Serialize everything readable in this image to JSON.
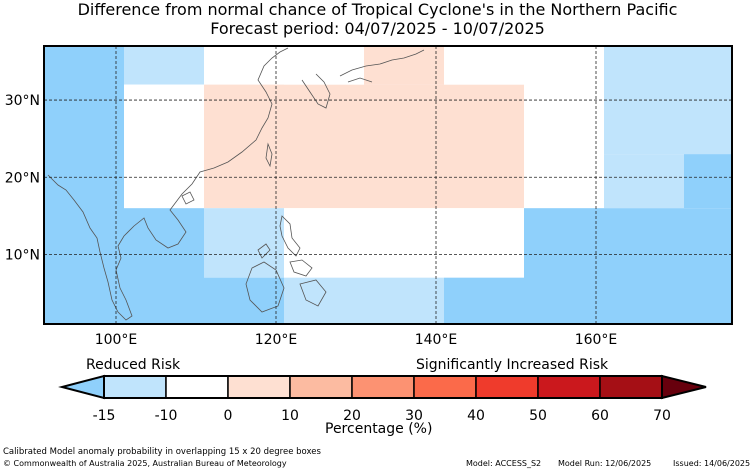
{
  "title_line1": "Difference from normal chance of Tropical Cyclone's in the Northern Pacific",
  "title_line2": "Forecast period: 04/07/2025 - 10/07/2025",
  "map": {
    "lat_labels": [
      "30°N",
      "20°N",
      "10°N"
    ],
    "lon_labels": [
      "100°E",
      "120°E",
      "140°E",
      "160°E"
    ],
    "cells": [
      {
        "lon": [
          91,
          101
        ],
        "lat": [
          1,
          37
        ],
        "bin": "-15 to -10",
        "color": "#8fd0fb"
      },
      {
        "lon": [
          91,
          101
        ],
        "lat": [
          16,
          37
        ],
        "bin": "-15 to -10",
        "color": "#8fd0fb"
      },
      {
        "lon": [
          101,
          111
        ],
        "lat": [
          32,
          37
        ],
        "bin": "-10 to 0",
        "color": "#c0e4fc"
      },
      {
        "lon": [
          101,
          111
        ],
        "lat": [
          16,
          32
        ],
        "bin": "0 to 10",
        "color": "#ffffff"
      },
      {
        "lon": [
          101,
          111
        ],
        "lat": [
          1,
          16
        ],
        "bin": "-15 to -10",
        "color": "#8fd0fb"
      },
      {
        "lon": [
          111,
          121
        ],
        "lat": [
          32,
          37
        ],
        "bin": "0 to 10",
        "color": "#ffffff"
      },
      {
        "lon": [
          111,
          151
        ],
        "lat": [
          16,
          32
        ],
        "bin": "10 to 20",
        "color": "#fee0d2"
      },
      {
        "lon": [
          111,
          121
        ],
        "lat": [
          7,
          16
        ],
        "bin": "-10 to 0",
        "color": "#c0e4fc"
      },
      {
        "lon": [
          111,
          121
        ],
        "lat": [
          1,
          7
        ],
        "bin": "-15 to -10",
        "color": "#8fd0fb"
      },
      {
        "lon": [
          121,
          131
        ],
        "lat": [
          32,
          37
        ],
        "bin": "0 to 10",
        "color": "#ffffff"
      },
      {
        "lon": [
          131,
          141
        ],
        "lat": [
          32,
          37
        ],
        "bin": "10 to 20",
        "color": "#fee0d2"
      },
      {
        "lon": [
          141,
          151
        ],
        "lat": [
          32,
          37
        ],
        "bin": "0 to 10",
        "color": "#ffffff"
      },
      {
        "lon": [
          121,
          151
        ],
        "lat": [
          7,
          16
        ],
        "bin": "0 to 10",
        "color": "#ffffff"
      },
      {
        "lon": [
          121,
          141
        ],
        "lat": [
          1,
          7
        ],
        "bin": "-10 to 0",
        "color": "#c0e4fc"
      },
      {
        "lon": [
          141,
          151
        ],
        "lat": [
          1,
          7
        ],
        "bin": "-15 to -10",
        "color": "#8fd0fb"
      },
      {
        "lon": [
          151,
          161
        ],
        "lat": [
          16,
          37
        ],
        "bin": "0 to 10",
        "color": "#ffffff"
      },
      {
        "lon": [
          151,
          161
        ],
        "lat": [
          1,
          16
        ],
        "bin": "-15 to -10",
        "color": "#8fd0fb"
      },
      {
        "lon": [
          161,
          177
        ],
        "lat": [
          23,
          37
        ],
        "bin": "-10 to 0",
        "color": "#c0e4fc"
      },
      {
        "lon": [
          161,
          171
        ],
        "lat": [
          16,
          23
        ],
        "bin": "-10 to 0",
        "color": "#c0e4fc"
      },
      {
        "lon": [
          171,
          177
        ],
        "lat": [
          16,
          23
        ],
        "bin": "-15 to -10",
        "color": "#8fd0fb"
      },
      {
        "lon": [
          161,
          177
        ],
        "lat": [
          1,
          16
        ],
        "bin": "-15 to -10",
        "color": "#8fd0fb"
      }
    ]
  },
  "colorbar": {
    "left_label": "Reduced Risk",
    "right_label": "Significantly Increased Risk",
    "ticks": [
      "-15",
      "-10",
      "0",
      "10",
      "20",
      "30",
      "40",
      "50",
      "60",
      "70"
    ],
    "colors": [
      "#8fd0fb",
      "#c0e4fc",
      "#ffffff",
      "#fee0d2",
      "#fcbba1",
      "#fc9272",
      "#fb6a4a",
      "#ef3b2c",
      "#cb181d",
      "#a50f15",
      "#67000d"
    ],
    "xlabel": "Percentage (%)"
  },
  "footer": {
    "line1": "Calibrated Model anomaly probability in overlapping 15 x 20 degree boxes",
    "line2": "© Commonwealth of Australia 2025, Australian Bureau of Meteorology",
    "model": "Model: ACCESS_S2",
    "run": "Model Run: 12/06/2025",
    "issued": "Issued: 14/06/2025"
  }
}
